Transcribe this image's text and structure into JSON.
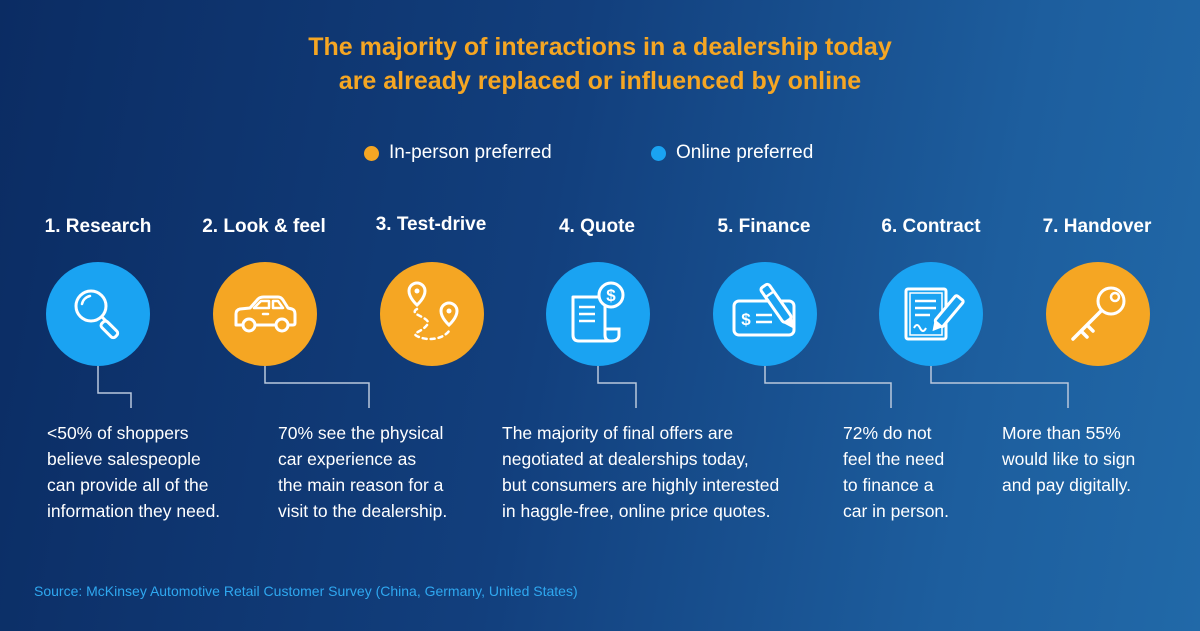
{
  "title": {
    "line1": "The majority of interactions in a dealership today",
    "line2": "are already replaced or influenced by online"
  },
  "legend": [
    {
      "label": "In-person preferred",
      "color": "#f5a623"
    },
    {
      "label": "Online preferred",
      "color": "#1aa3f2"
    }
  ],
  "steps": [
    {
      "label": "1. Research",
      "preference": "online",
      "icon": "magnifier-icon"
    },
    {
      "label": "2. Look & feel",
      "preference": "in-person",
      "icon": "car-icon"
    },
    {
      "label": "3. Test-drive",
      "preference": "in-person",
      "icon": "route-pins-icon"
    },
    {
      "label": "4. Quote",
      "preference": "online",
      "icon": "price-quote-icon"
    },
    {
      "label": "5. Finance",
      "preference": "online",
      "icon": "check-pen-icon"
    },
    {
      "label": "6. Contract",
      "preference": "online",
      "icon": "contract-sign-icon"
    },
    {
      "label": "7. Handover",
      "preference": "in-person",
      "icon": "key-icon"
    }
  ],
  "descriptions": [
    {
      "lines": [
        "<50% of shoppers",
        "believe salespeople",
        "can provide all of the",
        "information they need."
      ]
    },
    {
      "lines": [
        "70% see the physical",
        "car experience as",
        "the main reason for a",
        "visit to the dealership."
      ]
    },
    {
      "lines": [
        "The majority of final offers are",
        "negotiated at dealerships today,",
        "but consumers are highly interested",
        "in haggle-free, online price quotes."
      ]
    },
    {
      "lines": [
        "72% do not",
        "feel the need",
        "to finance a",
        "car in person."
      ]
    },
    {
      "lines": [
        "More than 55%",
        "would like to sign",
        "and pay digitally."
      ]
    }
  ],
  "source": "Source: McKinsey Automotive Retail Customer Survey (China, Germany, United States)",
  "colors": {
    "orange": "#f5a623",
    "blue": "#1aa3f2",
    "connector": "#b9c8dc"
  }
}
